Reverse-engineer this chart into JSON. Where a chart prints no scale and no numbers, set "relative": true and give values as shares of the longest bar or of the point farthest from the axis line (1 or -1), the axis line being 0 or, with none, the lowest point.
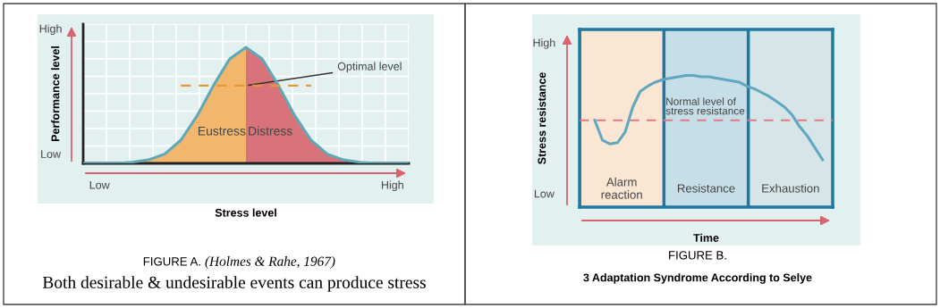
{
  "chart_data": [
    {
      "type": "area",
      "relative": true,
      "xlabel": "Stress level",
      "ylabel": "Performance level",
      "categories": [
        null,
        "Low",
        null,
        null,
        null,
        null,
        null,
        null,
        null,
        null,
        null,
        null,
        null,
        null,
        null,
        null,
        null,
        null,
        null,
        "High",
        null
      ],
      "grid": true,
      "series": [
        {
          "name": "Eustress",
          "color": "#f2b66d",
          "values": [
            0,
            0,
            0,
            0.01,
            0.03,
            0.08,
            0.2,
            0.41,
            0.67,
            0.9,
            1,
            null,
            null,
            null,
            null,
            null,
            null,
            null,
            null,
            null,
            null
          ]
        },
        {
          "name": "Distress",
          "color": "#d9737b",
          "values": [
            null,
            null,
            null,
            null,
            null,
            null,
            null,
            null,
            null,
            null,
            1,
            0.9,
            0.67,
            0.41,
            0.2,
            0.08,
            0.03,
            0.01,
            0,
            0,
            0
          ]
        },
        {
          "type": "line",
          "color": "#5fa8b8",
          "values": [
            0,
            0,
            0,
            0.01,
            0.03,
            0.08,
            0.2,
            0.41,
            0.67,
            0.9,
            1,
            0.9,
            0.67,
            0.41,
            0.2,
            0.08,
            0.03,
            0.01,
            0,
            0,
            0
          ]
        },
        {
          "type": "line",
          "color": "#e8963a",
          "line_style": "dashed",
          "values": [
            null,
            null,
            null,
            null,
            null,
            null,
            0.67,
            0.67,
            0.67,
            0.67,
            0.67,
            0.67,
            0.67,
            0.67,
            0.67,
            null,
            null,
            null,
            null,
            null,
            null
          ]
        }
      ],
      "annotations": [
        "High",
        "Low",
        "Optimal level",
        "FIGURE A.",
        "(Holmes & Rahe, 1967)",
        "Both desirable & undesirable events can produce stress"
      ]
    },
    {
      "type": "line",
      "relative": true,
      "xlabel": "Time",
      "ylabel": "Stress resistance",
      "categories": [
        null,
        null,
        null,
        null,
        null,
        null,
        null,
        null,
        null,
        null,
        null,
        null,
        null,
        null,
        null,
        null,
        null,
        null,
        null,
        null,
        null,
        null,
        null,
        null,
        null,
        null,
        null,
        null,
        null,
        null,
        null
      ],
      "grid": true,
      "series": [
        {
          "color": "#5fa8c0",
          "values": [
            0.66,
            0.51,
            0.48,
            0.49,
            0.57,
            0.76,
            0.88,
            0.92,
            0.95,
            0.97,
            0.98,
            0.99,
            1,
            1,
            0.99,
            0.99,
            0.98,
            0.97,
            0.96,
            0.95,
            0.92,
            0.9,
            0.87,
            0.84,
            0.8,
            0.76,
            0.7,
            0.61,
            0.54,
            0.45,
            0.36
          ]
        }
      ],
      "ref_lines": [
        {
          "axis": "y",
          "value": 0.66,
          "label": "Normal level of\nstress resistance",
          "color": "#e07888",
          "line_style": "dashed"
        }
      ],
      "annotations": [
        "High",
        "Low",
        "Alarm\nreaction",
        "Resistance",
        "Exhaustion",
        "FIGURE B.",
        "3 Adaptation Syndrome According to Selye"
      ]
    }
  ]
}
